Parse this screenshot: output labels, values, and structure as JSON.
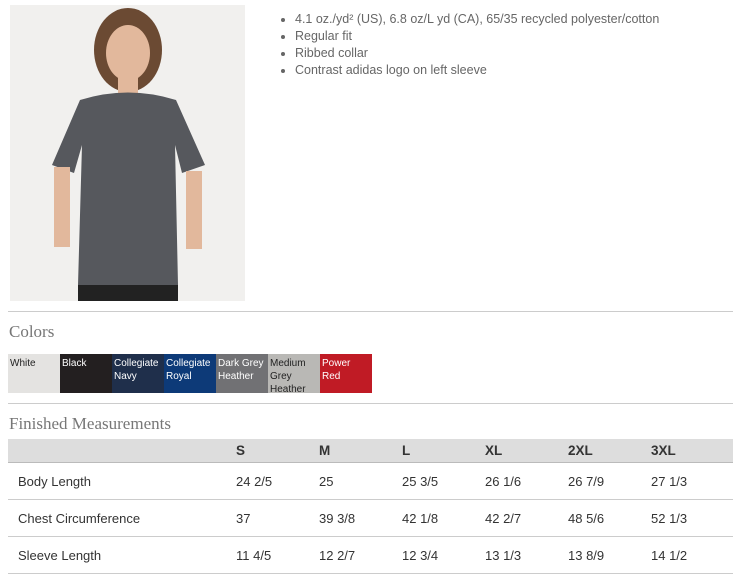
{
  "features": [
    "4.1 oz./yd² (US), 6.8 oz/L yd (CA), 65/35 recycled polyester/cotton",
    "Regular fit",
    "Ribbed collar",
    "Contrast adidas logo on left sleeve"
  ],
  "colors_title": "Colors",
  "colors": [
    {
      "name": "White",
      "hex": "#e4e3e1",
      "text": "#222"
    },
    {
      "name": "Black",
      "hex": "#231f20",
      "text": "#fff"
    },
    {
      "name": "Collegiate Navy",
      "hex": "#1f2f4b",
      "text": "#fff"
    },
    {
      "name": "Collegiate Royal",
      "hex": "#0d3a78",
      "text": "#fff"
    },
    {
      "name": "Dark Grey Heather",
      "hex": "#717174",
      "text": "#fff"
    },
    {
      "name": "Medium Grey Heather",
      "hex": "#b9b8b5",
      "text": "#222"
    },
    {
      "name": "Power Red",
      "hex": "#c01b25",
      "text": "#fff"
    }
  ],
  "measurements_title": "Finished Measurements",
  "sizes": [
    "S",
    "M",
    "L",
    "XL",
    "2XL",
    "3XL"
  ],
  "rows": [
    {
      "label": "Body Length",
      "values": [
        "24 2/5",
        "25",
        "25 3/5",
        "26 1/6",
        "26 7/9",
        "27 1/3"
      ]
    },
    {
      "label": "Chest Circumference",
      "values": [
        "37",
        "39 3/8",
        "42 1/8",
        "42 2/7",
        "48 5/6",
        "52 1/3"
      ]
    },
    {
      "label": "Sleeve Length",
      "values": [
        "11 4/5",
        "12 2/7",
        "12 3/4",
        "13 1/3",
        "13 8/9",
        "14 1/2"
      ]
    }
  ]
}
